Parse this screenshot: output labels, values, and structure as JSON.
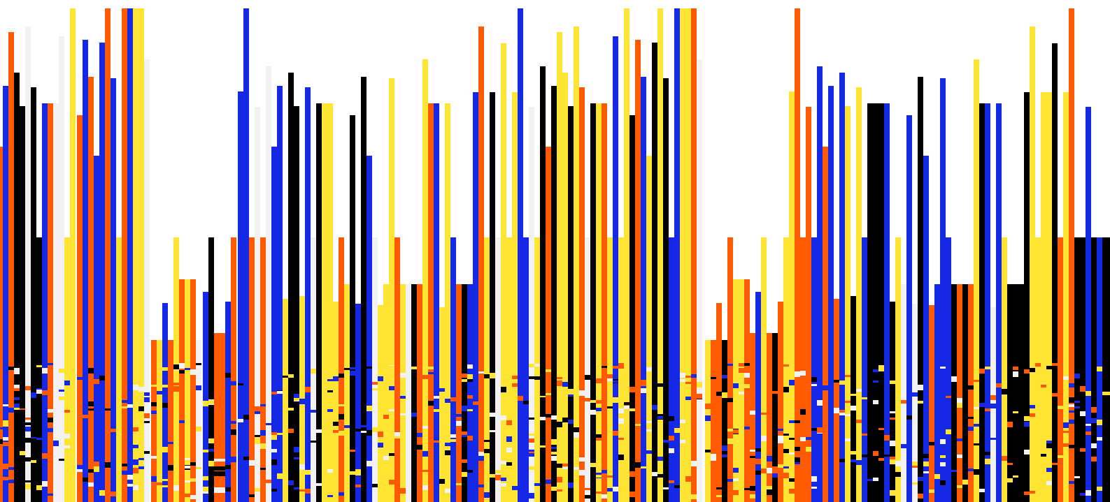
{
  "artwork": {
    "description_colors": {
      "white": "#ffffff",
      "offwhite": "#f2f1f1",
      "blue": "#1428e6",
      "orange": "#ff5a00",
      "yellow": "#ffe433",
      "black": "#000000"
    },
    "palette": [
      "#1428e6",
      "#ff5a00",
      "#ffe433",
      "#000000",
      "#f2f1f1"
    ]
  }
}
